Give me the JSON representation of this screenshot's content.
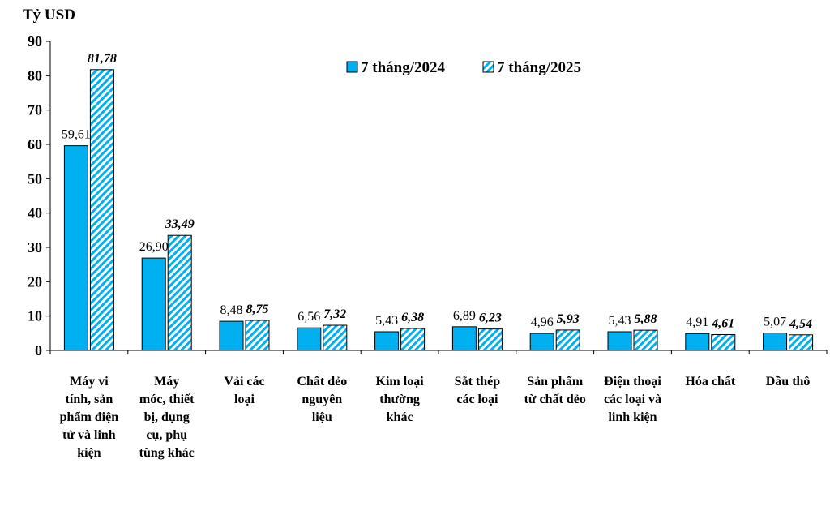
{
  "chart_data": {
    "type": "bar",
    "unit_label": "Tỷ USD",
    "ylim": [
      0,
      90
    ],
    "yticks": [
      0,
      10,
      20,
      30,
      40,
      50,
      60,
      70,
      80,
      90
    ],
    "grid": false,
    "legend_position": "top-right",
    "categories": [
      [
        "Máy vi",
        "tính, sản",
        "phẩm điện",
        "tử và linh",
        "kiện"
      ],
      [
        "Máy",
        "móc, thiết",
        "bị, dụng",
        "cụ, phụ",
        "tùng khác"
      ],
      [
        "Vải các",
        "loại"
      ],
      [
        "Chất dẻo",
        "nguyên",
        "liệu"
      ],
      [
        "Kim loại",
        "thường",
        "khác"
      ],
      [
        "Sắt thép",
        "các loại"
      ],
      [
        "Sản phẩm",
        "từ chất dẻo"
      ],
      [
        "Điện thoại",
        "các loại và",
        "linh kiện"
      ],
      [
        "Hóa chất"
      ],
      [
        "Dầu thô"
      ]
    ],
    "series": [
      {
        "name": "7 tháng/2024",
        "color": "#00B0F0",
        "pattern": "solid",
        "values": [
          59.61,
          26.9,
          8.48,
          6.56,
          5.43,
          6.89,
          4.96,
          5.43,
          4.91,
          5.07
        ],
        "labels": [
          "59,61",
          "26,90",
          "8,48",
          "6,56",
          "5,43",
          "6,89",
          "4,96",
          "5,43",
          "4,91",
          "5,07"
        ]
      },
      {
        "name": "7 tháng/2025",
        "color": "#00B0F0",
        "pattern": "diagonal-hatch",
        "values": [
          81.78,
          33.49,
          8.75,
          7.32,
          6.38,
          6.23,
          5.93,
          5.88,
          4.61,
          4.54
        ],
        "labels": [
          "81,78",
          "33,49",
          "8,75",
          "7,32",
          "6,38",
          "6,23",
          "5,93",
          "5,88",
          "4,61",
          "4,54"
        ]
      }
    ]
  }
}
